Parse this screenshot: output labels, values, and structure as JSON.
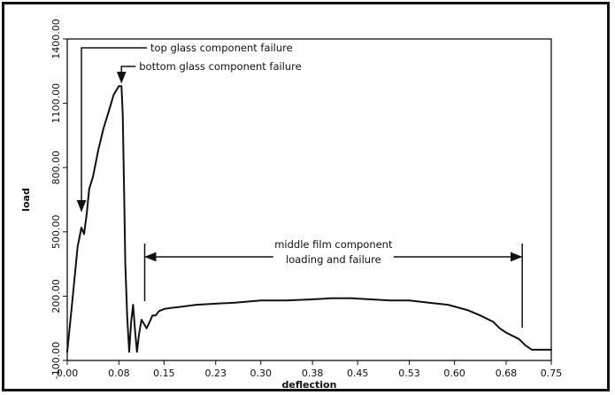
{
  "chart_data": {
    "type": "line",
    "title": "",
    "xlabel": "deflection",
    "ylabel": "load",
    "xlim": [
      0,
      0.75
    ],
    "ylim": [
      -100,
      1400
    ],
    "x_ticks": [
      "0.00",
      "0.08",
      "0.15",
      "0.23",
      "0.30",
      "0.38",
      "0.45",
      "0.53",
      "0.60",
      "0.68",
      "0.75"
    ],
    "y_ticks": [
      "-100.00",
      "200.00",
      "500.00",
      "800.00",
      "1100.00",
      "1400.00"
    ],
    "grid": false,
    "series": [
      {
        "x": [
          0.0,
          0.008,
          0.016,
          0.022,
          0.026,
          0.03,
          0.034,
          0.04,
          0.048,
          0.056,
          0.064,
          0.072,
          0.08,
          0.084,
          0.086,
          0.088,
          0.09,
          0.093,
          0.096,
          0.099,
          0.102,
          0.105,
          0.108,
          0.111,
          0.115,
          0.119,
          0.123,
          0.127,
          0.132,
          0.137,
          0.142,
          0.15,
          0.16,
          0.175,
          0.2,
          0.23,
          0.26,
          0.3,
          0.34,
          0.38,
          0.41,
          0.44,
          0.47,
          0.5,
          0.53,
          0.56,
          0.59,
          0.62,
          0.64,
          0.66,
          0.67,
          0.68,
          0.69,
          0.7,
          0.71,
          0.72,
          0.74,
          0.75
        ],
        "y": [
          -60,
          180,
          430,
          520,
          490,
          580,
          700,
          760,
          880,
          980,
          1060,
          1140,
          1180,
          1180,
          1050,
          700,
          350,
          100,
          -60,
          80,
          160,
          40,
          -60,
          20,
          90,
          70,
          50,
          75,
          110,
          110,
          130,
          140,
          145,
          150,
          160,
          165,
          170,
          180,
          180,
          185,
          190,
          190,
          185,
          180,
          180,
          170,
          160,
          135,
          110,
          80,
          50,
          30,
          15,
          0,
          -30,
          -50,
          -50,
          -50
        ]
      }
    ],
    "annotations": [
      {
        "text": "top glass component failure",
        "x": 0.022,
        "y": 540
      },
      {
        "text": "bottom glass component failure",
        "x": 0.084,
        "y": 1190
      },
      {
        "text_lines": [
          "middle film component",
          "loading and failure"
        ],
        "x_range": [
          0.12,
          0.705
        ]
      }
    ]
  }
}
